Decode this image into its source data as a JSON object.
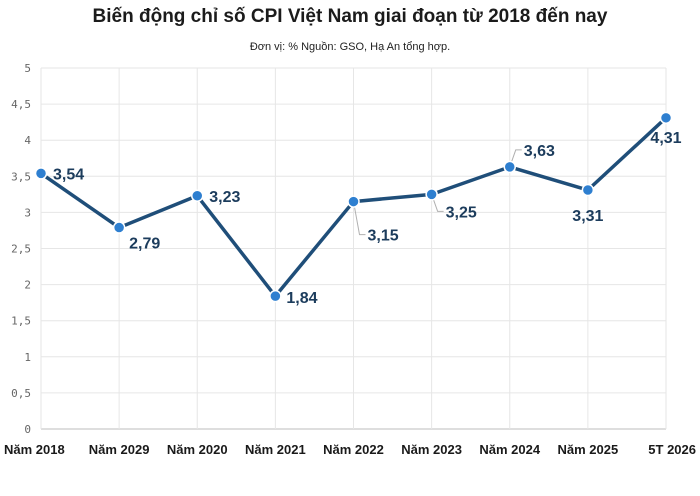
{
  "chart_data": {
    "type": "line",
    "title": "Biến động chỉ số CPI Việt Nam giai đoạn từ 2018 đến nay",
    "subtitle": "Đơn vị: % Nguồn: GSO, Hạ An tổng hợp.",
    "categories": [
      "Năm 2018",
      "Năm 2029",
      "Năm 2020",
      "Năm 2021",
      "Năm 2022",
      "Năm 2023",
      "Năm 2024",
      "Năm 2025",
      "5T 2026"
    ],
    "values": [
      3.54,
      2.79,
      3.23,
      1.84,
      3.15,
      3.25,
      3.63,
      3.31,
      4.31
    ],
    "value_labels": [
      "3,54",
      "2,79",
      "3,23",
      "1,84",
      "3,15",
      "3,25",
      "3,63",
      "3,31",
      "4,31"
    ],
    "ylim": [
      0,
      5
    ],
    "yticks": [
      "0",
      "0,5",
      "1",
      "1,5",
      "2",
      "2,5",
      "3",
      "3,5",
      "4",
      "4,5",
      "5"
    ],
    "grid": true,
    "legend": "none",
    "colors": {
      "line": "#1f4e79",
      "marker": "#2e7fd0",
      "label": "#1c3c5c"
    }
  }
}
